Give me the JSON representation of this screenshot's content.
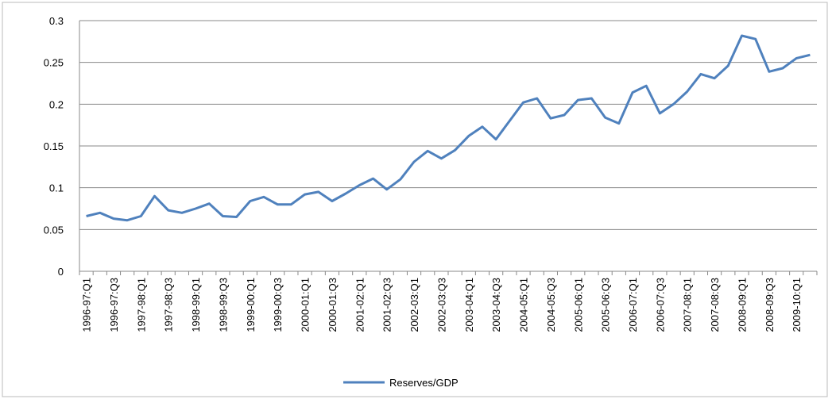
{
  "chart_data": {
    "type": "line",
    "categories": [
      "1996-97:Q1",
      null,
      "1996-97:Q3",
      null,
      "1997-98:Q1",
      null,
      "1997-98:Q3",
      null,
      "1998-99:Q1",
      null,
      "1998-99:Q3",
      null,
      "1999-00:Q1",
      null,
      "1999-00:Q3",
      null,
      "2000-01:Q1",
      null,
      "2000-01:Q3",
      null,
      "2001-02:Q1",
      null,
      "2001-02:Q3",
      null,
      "2002-03:Q1",
      null,
      "2002-03:Q3",
      null,
      "2003-04:Q1",
      null,
      "2003-04:Q3",
      null,
      "2004-05:Q1",
      null,
      "2004-05:Q3",
      null,
      "2005-06:Q1",
      null,
      "2005-06:Q3",
      null,
      "2006-07:Q1",
      null,
      "2006-07:Q3",
      null,
      "2007-08:Q1",
      null,
      "2007-08:Q3",
      null,
      "2008-09:Q1",
      null,
      "2008-09:Q3",
      null,
      "2009-10:Q1",
      null
    ],
    "series": [
      {
        "name": "Reserves/GDP",
        "color": "#4f81bd",
        "values": [
          0.066,
          0.07,
          0.063,
          0.061,
          0.066,
          0.09,
          0.073,
          0.07,
          0.075,
          0.081,
          0.066,
          0.065,
          0.084,
          0.089,
          0.08,
          0.08,
          0.092,
          0.095,
          0.084,
          0.093,
          0.103,
          0.111,
          0.098,
          0.11,
          0.131,
          0.144,
          0.135,
          0.145,
          0.162,
          0.173,
          0.158,
          0.18,
          0.202,
          0.207,
          0.183,
          0.187,
          0.205,
          0.207,
          0.184,
          0.177,
          0.214,
          0.222,
          0.189,
          0.2,
          0.215,
          0.236,
          0.231,
          0.246,
          0.282,
          0.278,
          0.239,
          0.243,
          0.255,
          0.259
        ]
      }
    ],
    "ylim": [
      0,
      0.3
    ],
    "yticks": [
      0,
      0.05,
      0.1,
      0.15,
      0.2,
      0.25,
      0.3
    ],
    "grid": true,
    "legend": "bottom"
  }
}
